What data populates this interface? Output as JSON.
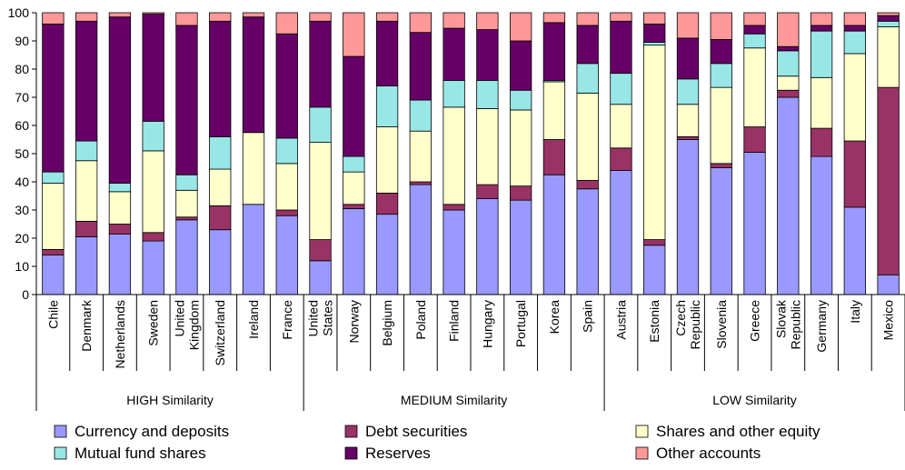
{
  "chart_data": {
    "type": "bar",
    "stacked": true,
    "percent": true,
    "title": "",
    "xlabel": "",
    "ylabel": "",
    "ylim": [
      0,
      100
    ],
    "yticks": [
      0,
      10,
      20,
      30,
      40,
      50,
      60,
      70,
      80,
      90,
      100
    ],
    "grid": false,
    "legend_position": "bottom",
    "categories": [
      "Chile",
      "Denmark",
      "Netherlands",
      "Sweden",
      "United Kingdom",
      "Switzerland",
      "Ireland",
      "France",
      "United States",
      "Norway",
      "Belgium",
      "Poland",
      "Finland",
      "Hungary",
      "Portugal",
      "Korea",
      "Spain",
      "Austria",
      "Estonia",
      "Czech Republic",
      "Slovenia",
      "Greece",
      "Slovak Republic",
      "Germany",
      "Italy",
      "Mexico"
    ],
    "groups": [
      {
        "label": "HIGH Similarity",
        "start": 0,
        "end": 7
      },
      {
        "label": "MEDIUM Similarity",
        "start": 8,
        "end": 16
      },
      {
        "label": "LOW Similarity",
        "start": 17,
        "end": 25
      }
    ],
    "series": [
      {
        "name": "Currency and deposits",
        "color": "#9999FF",
        "values": [
          14,
          20.5,
          21.5,
          19,
          26.5,
          23,
          32,
          28,
          12,
          30.5,
          28.5,
          39,
          30,
          34,
          33.5,
          42.5,
          37.5,
          44,
          17.5,
          55,
          45,
          50.5,
          70,
          49,
          31,
          7
        ]
      },
      {
        "name": "Debt securities",
        "color": "#993366",
        "values": [
          2,
          5.5,
          3.5,
          3,
          1,
          8.5,
          0,
          2,
          7.5,
          1.5,
          7.5,
          1,
          2,
          5,
          5,
          12.5,
          3,
          8,
          2,
          1,
          1.5,
          9,
          2.5,
          10,
          23.5,
          66.5
        ]
      },
      {
        "name": "Shares and other equity",
        "color": "#FFFFCC",
        "values": [
          23.5,
          21.5,
          11.5,
          29,
          9.5,
          13,
          25.5,
          16.5,
          34.5,
          11.5,
          23.5,
          18,
          34.5,
          27,
          27,
          20.5,
          31,
          15.5,
          69,
          11.5,
          27,
          28,
          5,
          18,
          31,
          21.5
        ]
      },
      {
        "name": "Mutual fund shares",
        "color": "#99E6E6",
        "values": [
          4,
          7,
          3,
          10.5,
          5.5,
          11.5,
          0,
          9,
          12.5,
          5.5,
          14.5,
          11,
          9.5,
          10,
          7,
          0.5,
          10.5,
          11,
          1,
          9,
          8.5,
          5,
          9,
          16.5,
          8,
          2
        ]
      },
      {
        "name": "Reserves",
        "color": "#660066",
        "values": [
          52.5,
          42.5,
          59,
          38,
          53,
          41,
          41,
          37,
          30.5,
          35.5,
          23,
          24,
          18.5,
          18,
          17.5,
          20.5,
          13.5,
          18.5,
          6.5,
          14.5,
          8.5,
          3,
          1.5,
          2,
          2,
          2
        ]
      },
      {
        "name": "Other accounts",
        "color": "#FF9999",
        "values": [
          4,
          3,
          1.5,
          0.5,
          4.5,
          3,
          1.5,
          7.5,
          3,
          15.5,
          3,
          7,
          5.5,
          6,
          10,
          3.5,
          4.5,
          3,
          4,
          9,
          9.5,
          4.5,
          12,
          4.5,
          4.5,
          1
        ]
      }
    ]
  }
}
